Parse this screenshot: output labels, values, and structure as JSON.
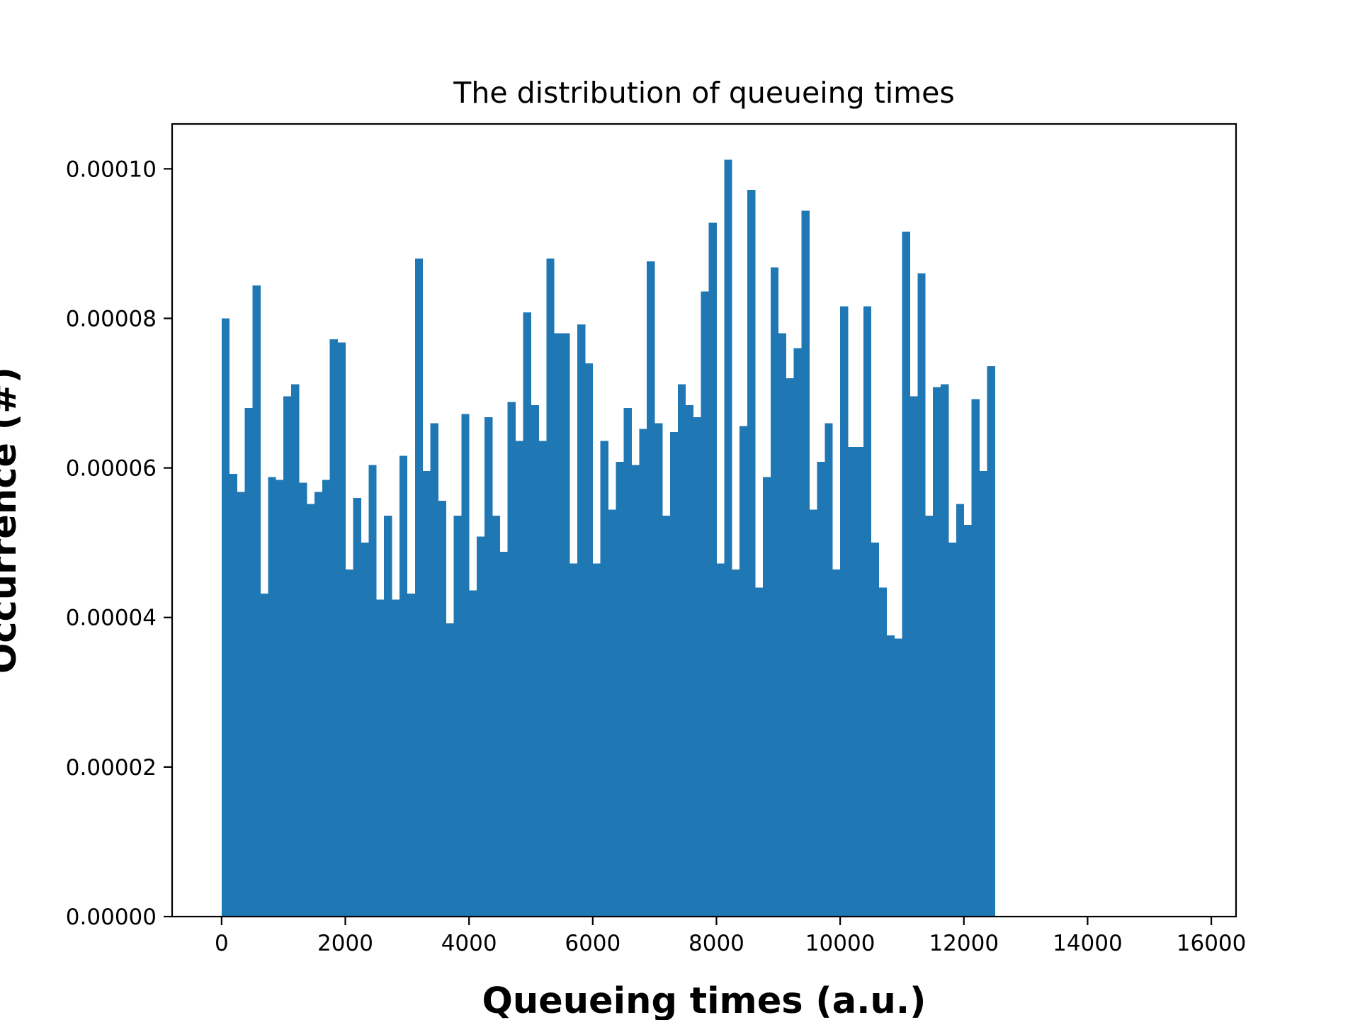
{
  "chart_data": {
    "type": "bar",
    "title": "The distribution of queueing times",
    "xlabel": "Queueing times (a.u.)",
    "ylabel": "Occurrence (#)",
    "xlim": [
      -800,
      16400
    ],
    "ylim": [
      0,
      0.000106
    ],
    "grid": false,
    "legend": "none",
    "bar_color": "#1f77b4",
    "bin_start": 0,
    "bin_width": 125,
    "xticks": [
      {
        "value": 0,
        "label": "0"
      },
      {
        "value": 2000,
        "label": "2000"
      },
      {
        "value": 4000,
        "label": "4000"
      },
      {
        "value": 6000,
        "label": "6000"
      },
      {
        "value": 8000,
        "label": "8000"
      },
      {
        "value": 10000,
        "label": "10000"
      },
      {
        "value": 12000,
        "label": "12000"
      },
      {
        "value": 14000,
        "label": "14000"
      },
      {
        "value": 16000,
        "label": "16000"
      }
    ],
    "yticks": [
      {
        "value": 0,
        "label": "0.00000"
      },
      {
        "value": 2e-05,
        "label": "0.00002"
      },
      {
        "value": 4e-05,
        "label": "0.00004"
      },
      {
        "value": 6e-05,
        "label": "0.00006"
      },
      {
        "value": 8e-05,
        "label": "0.00008"
      },
      {
        "value": 0.0001,
        "label": "0.00010"
      }
    ],
    "values": [
      8e-05,
      5.92e-05,
      5.68e-05,
      6.8e-05,
      8.44e-05,
      4.32e-05,
      5.88e-05,
      5.84e-05,
      6.96e-05,
      7.12e-05,
      5.8e-05,
      5.52e-05,
      5.68e-05,
      5.84e-05,
      7.72e-05,
      7.68e-05,
      4.64e-05,
      5.6e-05,
      5e-05,
      6.04e-05,
      4.24e-05,
      5.36e-05,
      4.24e-05,
      6.16e-05,
      4.32e-05,
      8.8e-05,
      5.96e-05,
      6.6e-05,
      5.56e-05,
      3.92e-05,
      5.36e-05,
      6.72e-05,
      4.36e-05,
      5.08e-05,
      6.68e-05,
      5.36e-05,
      4.88e-05,
      6.88e-05,
      6.36e-05,
      8.08e-05,
      6.84e-05,
      6.36e-05,
      8.8e-05,
      7.8e-05,
      7.8e-05,
      4.72e-05,
      7.92e-05,
      7.4e-05,
      4.72e-05,
      6.36e-05,
      5.44e-05,
      6.08e-05,
      6.8e-05,
      6.04e-05,
      6.52e-05,
      8.76e-05,
      6.6e-05,
      5.36e-05,
      6.48e-05,
      7.12e-05,
      6.84e-05,
      6.68e-05,
      8.36e-05,
      9.28e-05,
      4.72e-05,
      0.0001012,
      4.64e-05,
      6.56e-05,
      9.72e-05,
      4.4e-05,
      5.88e-05,
      8.68e-05,
      7.8e-05,
      7.2e-05,
      7.6e-05,
      9.44e-05,
      5.44e-05,
      6.08e-05,
      6.6e-05,
      4.64e-05,
      8.16e-05,
      6.28e-05,
      6.28e-05,
      8.16e-05,
      5e-05,
      4.4e-05,
      3.76e-05,
      3.72e-05,
      9.16e-05,
      6.96e-05,
      8.6e-05,
      5.36e-05,
      7.08e-05,
      7.12e-05,
      5e-05,
      5.52e-05,
      5.24e-05,
      6.92e-05,
      5.96e-05,
      7.36e-05
    ]
  }
}
